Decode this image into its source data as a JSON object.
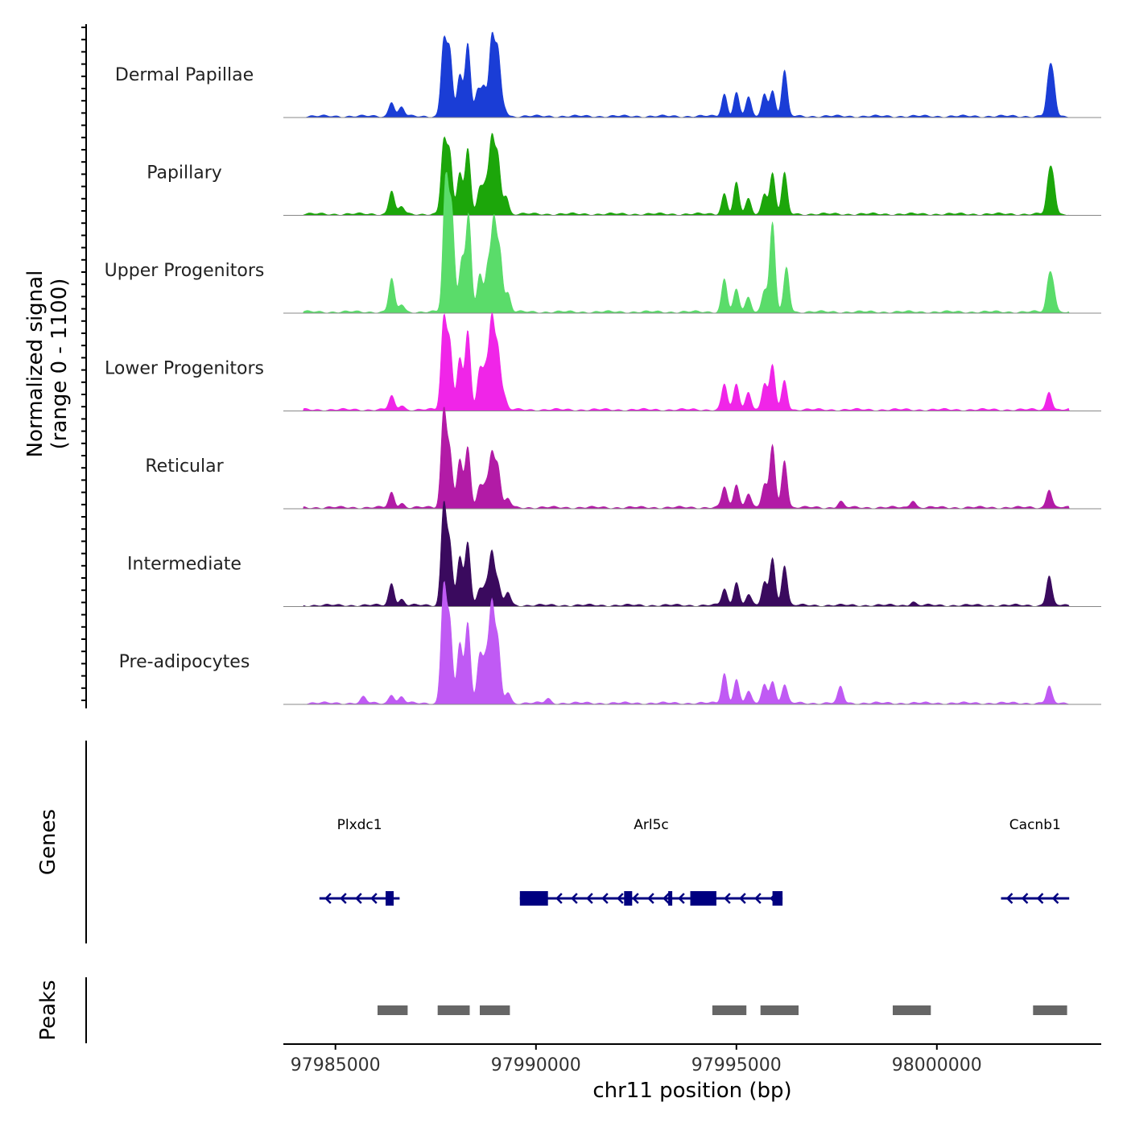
{
  "chart_data": {
    "type": "area",
    "title": "",
    "region": {
      "chrom": "chr11",
      "start": 97983700,
      "end": 98004100
    },
    "xlabel": "chr11 position (bp)",
    "ylabel_line1": "Normalized signal",
    "ylabel_line2": "(range 0 - 1100)",
    "ylim": [
      0,
      1100
    ],
    "x_ticks": [
      {
        "value": 97985000,
        "label": "97985000"
      },
      {
        "value": 97990000,
        "label": "97990000"
      },
      {
        "value": 97995000,
        "label": "97995000"
      },
      {
        "value": 98000000,
        "label": "98000000"
      }
    ],
    "series": [
      {
        "name": "Dermal Papillae",
        "color": "#1a3dd6",
        "scale": 1.0,
        "peaks": [
          [
            97986400,
            0.2
          ],
          [
            97986650,
            0.12
          ],
          [
            97987700,
            1.0
          ],
          [
            97987850,
            0.85
          ],
          [
            97988100,
            0.55
          ],
          [
            97988300,
            1.0
          ],
          [
            97988550,
            0.35
          ],
          [
            97988700,
            0.38
          ],
          [
            97988900,
            1.05
          ],
          [
            97989050,
            0.85
          ],
          [
            97989200,
            0.12
          ],
          [
            97994700,
            0.3
          ],
          [
            97995000,
            0.32
          ],
          [
            97995300,
            0.25
          ],
          [
            97995700,
            0.3
          ],
          [
            97995900,
            0.35
          ],
          [
            97996200,
            0.62
          ],
          [
            98002800,
            0.5
          ],
          [
            98002900,
            0.42
          ]
        ]
      },
      {
        "name": "Papillary",
        "color": "#1ca60a",
        "scale": 1.0,
        "peaks": [
          [
            97986400,
            0.32
          ],
          [
            97986650,
            0.1
          ],
          [
            97987700,
            0.95
          ],
          [
            97987850,
            0.8
          ],
          [
            97988100,
            0.55
          ],
          [
            97988300,
            0.9
          ],
          [
            97988600,
            0.35
          ],
          [
            97988750,
            0.35
          ],
          [
            97988900,
            1.0
          ],
          [
            97989050,
            0.75
          ],
          [
            97989250,
            0.25
          ],
          [
            97994700,
            0.28
          ],
          [
            97995000,
            0.42
          ],
          [
            97995300,
            0.2
          ],
          [
            97995700,
            0.28
          ],
          [
            97995900,
            0.55
          ],
          [
            97996200,
            0.55
          ],
          [
            98002800,
            0.45
          ],
          [
            98002900,
            0.4
          ]
        ]
      },
      {
        "name": "Upper Progenitors",
        "color": "#5adc6a",
        "scale": 1.0,
        "peaks": [
          [
            97986400,
            0.45
          ],
          [
            97986650,
            0.1
          ],
          [
            97987750,
            1.78
          ],
          [
            97987900,
            1.35
          ],
          [
            97988150,
            0.7
          ],
          [
            97988320,
            1.3
          ],
          [
            97988600,
            0.5
          ],
          [
            97988800,
            0.6
          ],
          [
            97988950,
            1.2
          ],
          [
            97989100,
            0.8
          ],
          [
            97989300,
            0.25
          ],
          [
            97994700,
            0.45
          ],
          [
            97995000,
            0.3
          ],
          [
            97995300,
            0.2
          ],
          [
            97995700,
            0.3
          ],
          [
            97995900,
            1.2
          ],
          [
            97996250,
            0.6
          ],
          [
            98002800,
            0.42
          ],
          [
            98002900,
            0.3
          ]
        ]
      },
      {
        "name": "Lower Progenitors",
        "color": "#f025e8",
        "scale": 1.0,
        "peaks": [
          [
            97986400,
            0.18
          ],
          [
            97986650,
            0.06
          ],
          [
            97987700,
            1.2
          ],
          [
            97987850,
            0.9
          ],
          [
            97988100,
            0.7
          ],
          [
            97988300,
            1.05
          ],
          [
            97988600,
            0.52
          ],
          [
            97988750,
            0.52
          ],
          [
            97988900,
            1.2
          ],
          [
            97989050,
            0.8
          ],
          [
            97989200,
            0.18
          ],
          [
            97994700,
            0.35
          ],
          [
            97995000,
            0.35
          ],
          [
            97995300,
            0.25
          ],
          [
            97995700,
            0.35
          ],
          [
            97995900,
            0.6
          ],
          [
            97996200,
            0.4
          ],
          [
            98002800,
            0.25
          ]
        ]
      },
      {
        "name": "Reticular",
        "color": "#b21ba6",
        "scale": 1.0,
        "peaks": [
          [
            97986400,
            0.2
          ],
          [
            97986650,
            0.06
          ],
          [
            97987700,
            1.3
          ],
          [
            97987850,
            0.75
          ],
          [
            97988100,
            0.65
          ],
          [
            97988300,
            0.8
          ],
          [
            97988600,
            0.28
          ],
          [
            97988750,
            0.3
          ],
          [
            97988900,
            0.7
          ],
          [
            97989050,
            0.55
          ],
          [
            97989300,
            0.12
          ],
          [
            97994700,
            0.28
          ],
          [
            97995000,
            0.32
          ],
          [
            97995300,
            0.2
          ],
          [
            97995700,
            0.3
          ],
          [
            97995900,
            0.85
          ],
          [
            97996200,
            0.65
          ],
          [
            97997600,
            0.08
          ],
          [
            97999400,
            0.1
          ],
          [
            98002800,
            0.25
          ]
        ]
      },
      {
        "name": "Intermediate",
        "color": "#3a0a5e",
        "scale": 1.0,
        "peaks": [
          [
            97986400,
            0.3
          ],
          [
            97986650,
            0.08
          ],
          [
            97987700,
            1.35
          ],
          [
            97987850,
            0.8
          ],
          [
            97988100,
            0.65
          ],
          [
            97988300,
            0.85
          ],
          [
            97988600,
            0.22
          ],
          [
            97988750,
            0.25
          ],
          [
            97988900,
            0.7
          ],
          [
            97989050,
            0.3
          ],
          [
            97989300,
            0.18
          ],
          [
            97994700,
            0.22
          ],
          [
            97995000,
            0.32
          ],
          [
            97995300,
            0.15
          ],
          [
            97995700,
            0.3
          ],
          [
            97995900,
            0.65
          ],
          [
            97996200,
            0.55
          ],
          [
            97999400,
            0.05
          ],
          [
            98002800,
            0.4
          ]
        ]
      },
      {
        "name": "Pre-adipocytes",
        "color": "#c05af4",
        "scale": 1.0,
        "peaks": [
          [
            97985700,
            0.08
          ],
          [
            97986400,
            0.12
          ],
          [
            97986650,
            0.08
          ],
          [
            97987700,
            1.55
          ],
          [
            97987850,
            1.05
          ],
          [
            97988100,
            0.8
          ],
          [
            97988300,
            1.1
          ],
          [
            97988600,
            0.65
          ],
          [
            97988750,
            0.55
          ],
          [
            97988900,
            1.3
          ],
          [
            97989050,
            0.8
          ],
          [
            97989300,
            0.15
          ],
          [
            97990300,
            0.06
          ],
          [
            97994700,
            0.4
          ],
          [
            97995000,
            0.32
          ],
          [
            97995300,
            0.15
          ],
          [
            97995700,
            0.25
          ],
          [
            97995900,
            0.3
          ],
          [
            97996200,
            0.25
          ],
          [
            97997600,
            0.22
          ],
          [
            98002800,
            0.22
          ]
        ]
      }
    ],
    "genes_label": "Genes",
    "gene_color": "#000080",
    "genes": [
      {
        "name": "Plxdc1",
        "strand": "-",
        "start": 97984600,
        "end": 97986600,
        "exons": [
          [
            97986250,
            97986450
          ]
        ]
      },
      {
        "name": "Arl5c",
        "strand": "-",
        "start": 97989600,
        "end": 97996150,
        "exons": [
          [
            97989600,
            97990300
          ],
          [
            97992200,
            97992400
          ],
          [
            97993300,
            97993400
          ],
          [
            97993850,
            97994500
          ],
          [
            97995900,
            97996150
          ]
        ]
      },
      {
        "name": "Cacnb1",
        "strand": "-",
        "start": 98001600,
        "end": 98003300,
        "exons": []
      }
    ],
    "peaks_label": "Peaks",
    "peak_color": "#666666",
    "peaks": [
      [
        97986050,
        97986800
      ],
      [
        97987550,
        97988350
      ],
      [
        97988600,
        97989350
      ],
      [
        97994400,
        97995250
      ],
      [
        97995600,
        97996550
      ],
      [
        97998900,
        97999850
      ],
      [
        98002400,
        98003250
      ]
    ]
  }
}
